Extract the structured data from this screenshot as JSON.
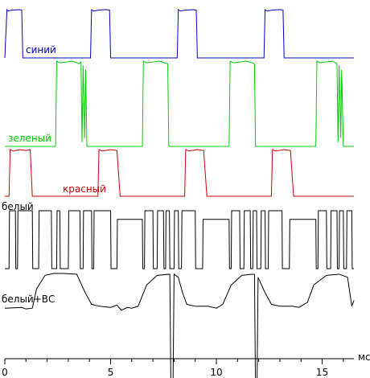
{
  "chart_data": {
    "type": "line",
    "x_unit": "мс",
    "xlim": [
      0,
      16.5
    ],
    "x_ticks": [
      0,
      5,
      10,
      15
    ],
    "series": [
      {
        "name": "синий",
        "color": "#0000cc",
        "high": 1,
        "low": 0,
        "points": [
          [
            0.0,
            0
          ],
          [
            0.1,
            1
          ],
          [
            0.15,
            0.97
          ],
          [
            0.3,
            0.99
          ],
          [
            0.7,
            1
          ],
          [
            0.8,
            0.99
          ],
          [
            0.85,
            0
          ],
          [
            4.05,
            0
          ],
          [
            4.1,
            1
          ],
          [
            4.2,
            0.97
          ],
          [
            4.4,
            0.99
          ],
          [
            4.8,
            1
          ],
          [
            4.95,
            0.99
          ],
          [
            5.0,
            0
          ],
          [
            8.15,
            0
          ],
          [
            8.2,
            1
          ],
          [
            8.3,
            0.97
          ],
          [
            8.5,
            0.99
          ],
          [
            8.9,
            1
          ],
          [
            9.05,
            0.99
          ],
          [
            9.1,
            0
          ],
          [
            12.25,
            0
          ],
          [
            12.3,
            1
          ],
          [
            12.4,
            0.97
          ],
          [
            12.6,
            0.99
          ],
          [
            13.0,
            1
          ],
          [
            13.15,
            0.99
          ],
          [
            13.2,
            0
          ],
          [
            16.5,
            0
          ]
        ]
      },
      {
        "name": "зеленый",
        "color": "#00cc00",
        "high": 1,
        "low": 0,
        "points": [
          [
            0.0,
            0
          ],
          [
            2.4,
            0
          ],
          [
            2.45,
            1
          ],
          [
            2.6,
            0.98
          ],
          [
            3.2,
            1
          ],
          [
            3.5,
            0.97
          ],
          [
            3.6,
            0.99
          ],
          [
            3.65,
            0.05
          ],
          [
            3.7,
            0.95
          ],
          [
            3.78,
            0.1
          ],
          [
            3.82,
            0.9
          ],
          [
            3.88,
            0
          ],
          [
            6.5,
            0
          ],
          [
            6.55,
            1
          ],
          [
            6.7,
            0.98
          ],
          [
            7.3,
            1
          ],
          [
            7.55,
            0.98
          ],
          [
            7.7,
            0.97
          ],
          [
            7.75,
            0
          ],
          [
            10.6,
            0
          ],
          [
            10.65,
            1
          ],
          [
            10.8,
            0.98
          ],
          [
            11.4,
            1
          ],
          [
            11.7,
            0.98
          ],
          [
            11.8,
            0.97
          ],
          [
            11.85,
            0
          ],
          [
            14.7,
            0
          ],
          [
            14.75,
            1
          ],
          [
            14.9,
            0.98
          ],
          [
            15.5,
            1
          ],
          [
            15.7,
            0.97
          ],
          [
            15.75,
            0.05
          ],
          [
            15.8,
            0.95
          ],
          [
            15.88,
            0.1
          ],
          [
            15.92,
            0.9
          ],
          [
            16.0,
            0
          ],
          [
            16.5,
            0
          ]
        ]
      },
      {
        "name": "красный",
        "color": "#cc0000",
        "high": 1,
        "low": 0,
        "points": [
          [
            0.0,
            0
          ],
          [
            0.2,
            0
          ],
          [
            0.25,
            1
          ],
          [
            0.4,
            0.97
          ],
          [
            0.7,
            1
          ],
          [
            1.0,
            0.98
          ],
          [
            1.2,
            1
          ],
          [
            1.3,
            0
          ],
          [
            4.4,
            0
          ],
          [
            4.45,
            1
          ],
          [
            4.6,
            0.97
          ],
          [
            5.0,
            1
          ],
          [
            5.3,
            0.98
          ],
          [
            5.45,
            0
          ],
          [
            8.5,
            0
          ],
          [
            8.55,
            1
          ],
          [
            8.7,
            0.97
          ],
          [
            9.1,
            1
          ],
          [
            9.4,
            0.98
          ],
          [
            9.55,
            0
          ],
          [
            12.6,
            0
          ],
          [
            12.65,
            1
          ],
          [
            12.8,
            0.97
          ],
          [
            13.2,
            1
          ],
          [
            13.5,
            0.98
          ],
          [
            13.65,
            0
          ],
          [
            16.5,
            0
          ]
        ]
      },
      {
        "name": "белый",
        "color": "#000000",
        "high": 1,
        "low": 0,
        "points": [
          [
            0.0,
            0
          ],
          [
            0.2,
            0
          ],
          [
            0.22,
            1
          ],
          [
            0.5,
            1
          ],
          [
            0.52,
            0
          ],
          [
            0.6,
            0
          ],
          [
            0.62,
            1
          ],
          [
            1.3,
            1
          ],
          [
            1.32,
            0
          ],
          [
            1.6,
            0
          ],
          [
            1.62,
            1
          ],
          [
            2.2,
            1
          ],
          [
            2.22,
            0
          ],
          [
            2.45,
            0
          ],
          [
            2.47,
            1
          ],
          [
            2.6,
            1
          ],
          [
            2.62,
            0
          ],
          [
            3.0,
            0
          ],
          [
            3.02,
            1
          ],
          [
            3.55,
            1
          ],
          [
            3.57,
            0
          ],
          [
            3.7,
            0
          ],
          [
            3.72,
            1
          ],
          [
            4.1,
            1
          ],
          [
            4.12,
            0
          ],
          [
            4.2,
            0
          ],
          [
            4.22,
            1
          ],
          [
            5.0,
            1
          ],
          [
            5.02,
            0
          ],
          [
            5.3,
            0
          ],
          [
            5.32,
            0.85
          ],
          [
            6.0,
            0.85
          ],
          [
            6.5,
            0.85
          ],
          [
            6.52,
            0
          ],
          [
            6.6,
            0
          ],
          [
            6.62,
            1
          ],
          [
            7.0,
            1
          ],
          [
            7.02,
            0
          ],
          [
            7.2,
            0
          ],
          [
            7.22,
            1
          ],
          [
            7.5,
            1
          ],
          [
            7.52,
            0
          ],
          [
            7.6,
            0
          ],
          [
            7.62,
            1
          ],
          [
            7.78,
            1
          ],
          [
            7.8,
            0
          ],
          [
            8.0,
            0
          ],
          [
            8.02,
            1
          ],
          [
            8.2,
            1
          ],
          [
            8.22,
            0
          ],
          [
            8.35,
            0
          ],
          [
            8.37,
            1
          ],
          [
            9.0,
            1
          ],
          [
            9.02,
            0
          ],
          [
            9.35,
            0
          ],
          [
            9.37,
            0.85
          ],
          [
            10.5,
            0.85
          ],
          [
            10.6,
            0.85
          ],
          [
            10.62,
            0
          ],
          [
            10.7,
            0
          ],
          [
            10.72,
            1
          ],
          [
            11.1,
            1
          ],
          [
            11.12,
            0
          ],
          [
            11.3,
            0
          ],
          [
            11.32,
            1
          ],
          [
            11.6,
            1
          ],
          [
            11.62,
            0
          ],
          [
            11.72,
            0
          ],
          [
            11.74,
            1
          ],
          [
            11.9,
            1
          ],
          [
            11.92,
            0
          ],
          [
            12.1,
            0
          ],
          [
            12.12,
            1
          ],
          [
            12.3,
            1
          ],
          [
            12.32,
            0
          ],
          [
            12.45,
            0
          ],
          [
            12.47,
            1
          ],
          [
            13.1,
            1
          ],
          [
            13.12,
            0
          ],
          [
            13.45,
            0
          ],
          [
            13.47,
            0.85
          ],
          [
            14.5,
            0.85
          ],
          [
            14.7,
            0.85
          ],
          [
            14.72,
            0
          ],
          [
            14.8,
            0
          ],
          [
            14.82,
            1
          ],
          [
            15.2,
            1
          ],
          [
            15.22,
            0
          ],
          [
            15.4,
            0
          ],
          [
            15.42,
            1
          ],
          [
            15.7,
            1
          ],
          [
            15.72,
            0
          ],
          [
            15.8,
            0
          ],
          [
            15.82,
            1
          ],
          [
            16.0,
            1
          ],
          [
            16.02,
            0
          ],
          [
            16.15,
            0
          ],
          [
            16.17,
            1
          ],
          [
            16.4,
            1
          ],
          [
            16.42,
            0
          ],
          [
            16.5,
            0
          ]
        ]
      },
      {
        "name": "белый+ВС",
        "color": "#000000",
        "high": 1,
        "low": 0,
        "points": [
          [
            0.0,
            0.1
          ],
          [
            0.8,
            0.12
          ],
          [
            1.0,
            0.08
          ],
          [
            1.3,
            0.1
          ],
          [
            1.5,
            0.6
          ],
          [
            1.9,
            0.95
          ],
          [
            2.3,
            1
          ],
          [
            2.8,
            1
          ],
          [
            3.4,
            0.98
          ],
          [
            3.8,
            0.5
          ],
          [
            4.1,
            0.2
          ],
          [
            4.5,
            0.15
          ],
          [
            5.0,
            0.12
          ],
          [
            5.3,
            0.18
          ],
          [
            5.5,
            0.05
          ],
          [
            5.8,
            0.12
          ],
          [
            6.0,
            0.1
          ],
          [
            6.3,
            0.15
          ],
          [
            6.7,
            0.7
          ],
          [
            7.2,
            0.95
          ],
          [
            7.8,
            0.98
          ],
          [
            7.85,
            -2.0
          ],
          [
            7.95,
            -2.0
          ],
          [
            8.0,
            0.98
          ],
          [
            8.2,
            0.9
          ],
          [
            8.4,
            0.5
          ],
          [
            8.6,
            0.2
          ],
          [
            9.0,
            0.15
          ],
          [
            9.6,
            0.15
          ],
          [
            10.0,
            0.1
          ],
          [
            10.3,
            0.2
          ],
          [
            10.7,
            0.7
          ],
          [
            11.2,
            0.95
          ],
          [
            11.7,
            0.98
          ],
          [
            11.8,
            0.98
          ],
          [
            11.85,
            -2.0
          ],
          [
            11.92,
            -2.0
          ],
          [
            11.97,
            0.9
          ],
          [
            12.3,
            0.5
          ],
          [
            12.6,
            0.2
          ],
          [
            13.0,
            0.15
          ],
          [
            13.6,
            0.15
          ],
          [
            13.9,
            0.12
          ],
          [
            14.3,
            0.25
          ],
          [
            14.6,
            0.7
          ],
          [
            15.2,
            0.95
          ],
          [
            15.8,
            0.98
          ],
          [
            16.2,
            0.9
          ],
          [
            16.4,
            0.15
          ],
          [
            16.5,
            0.3
          ]
        ]
      }
    ]
  }
}
